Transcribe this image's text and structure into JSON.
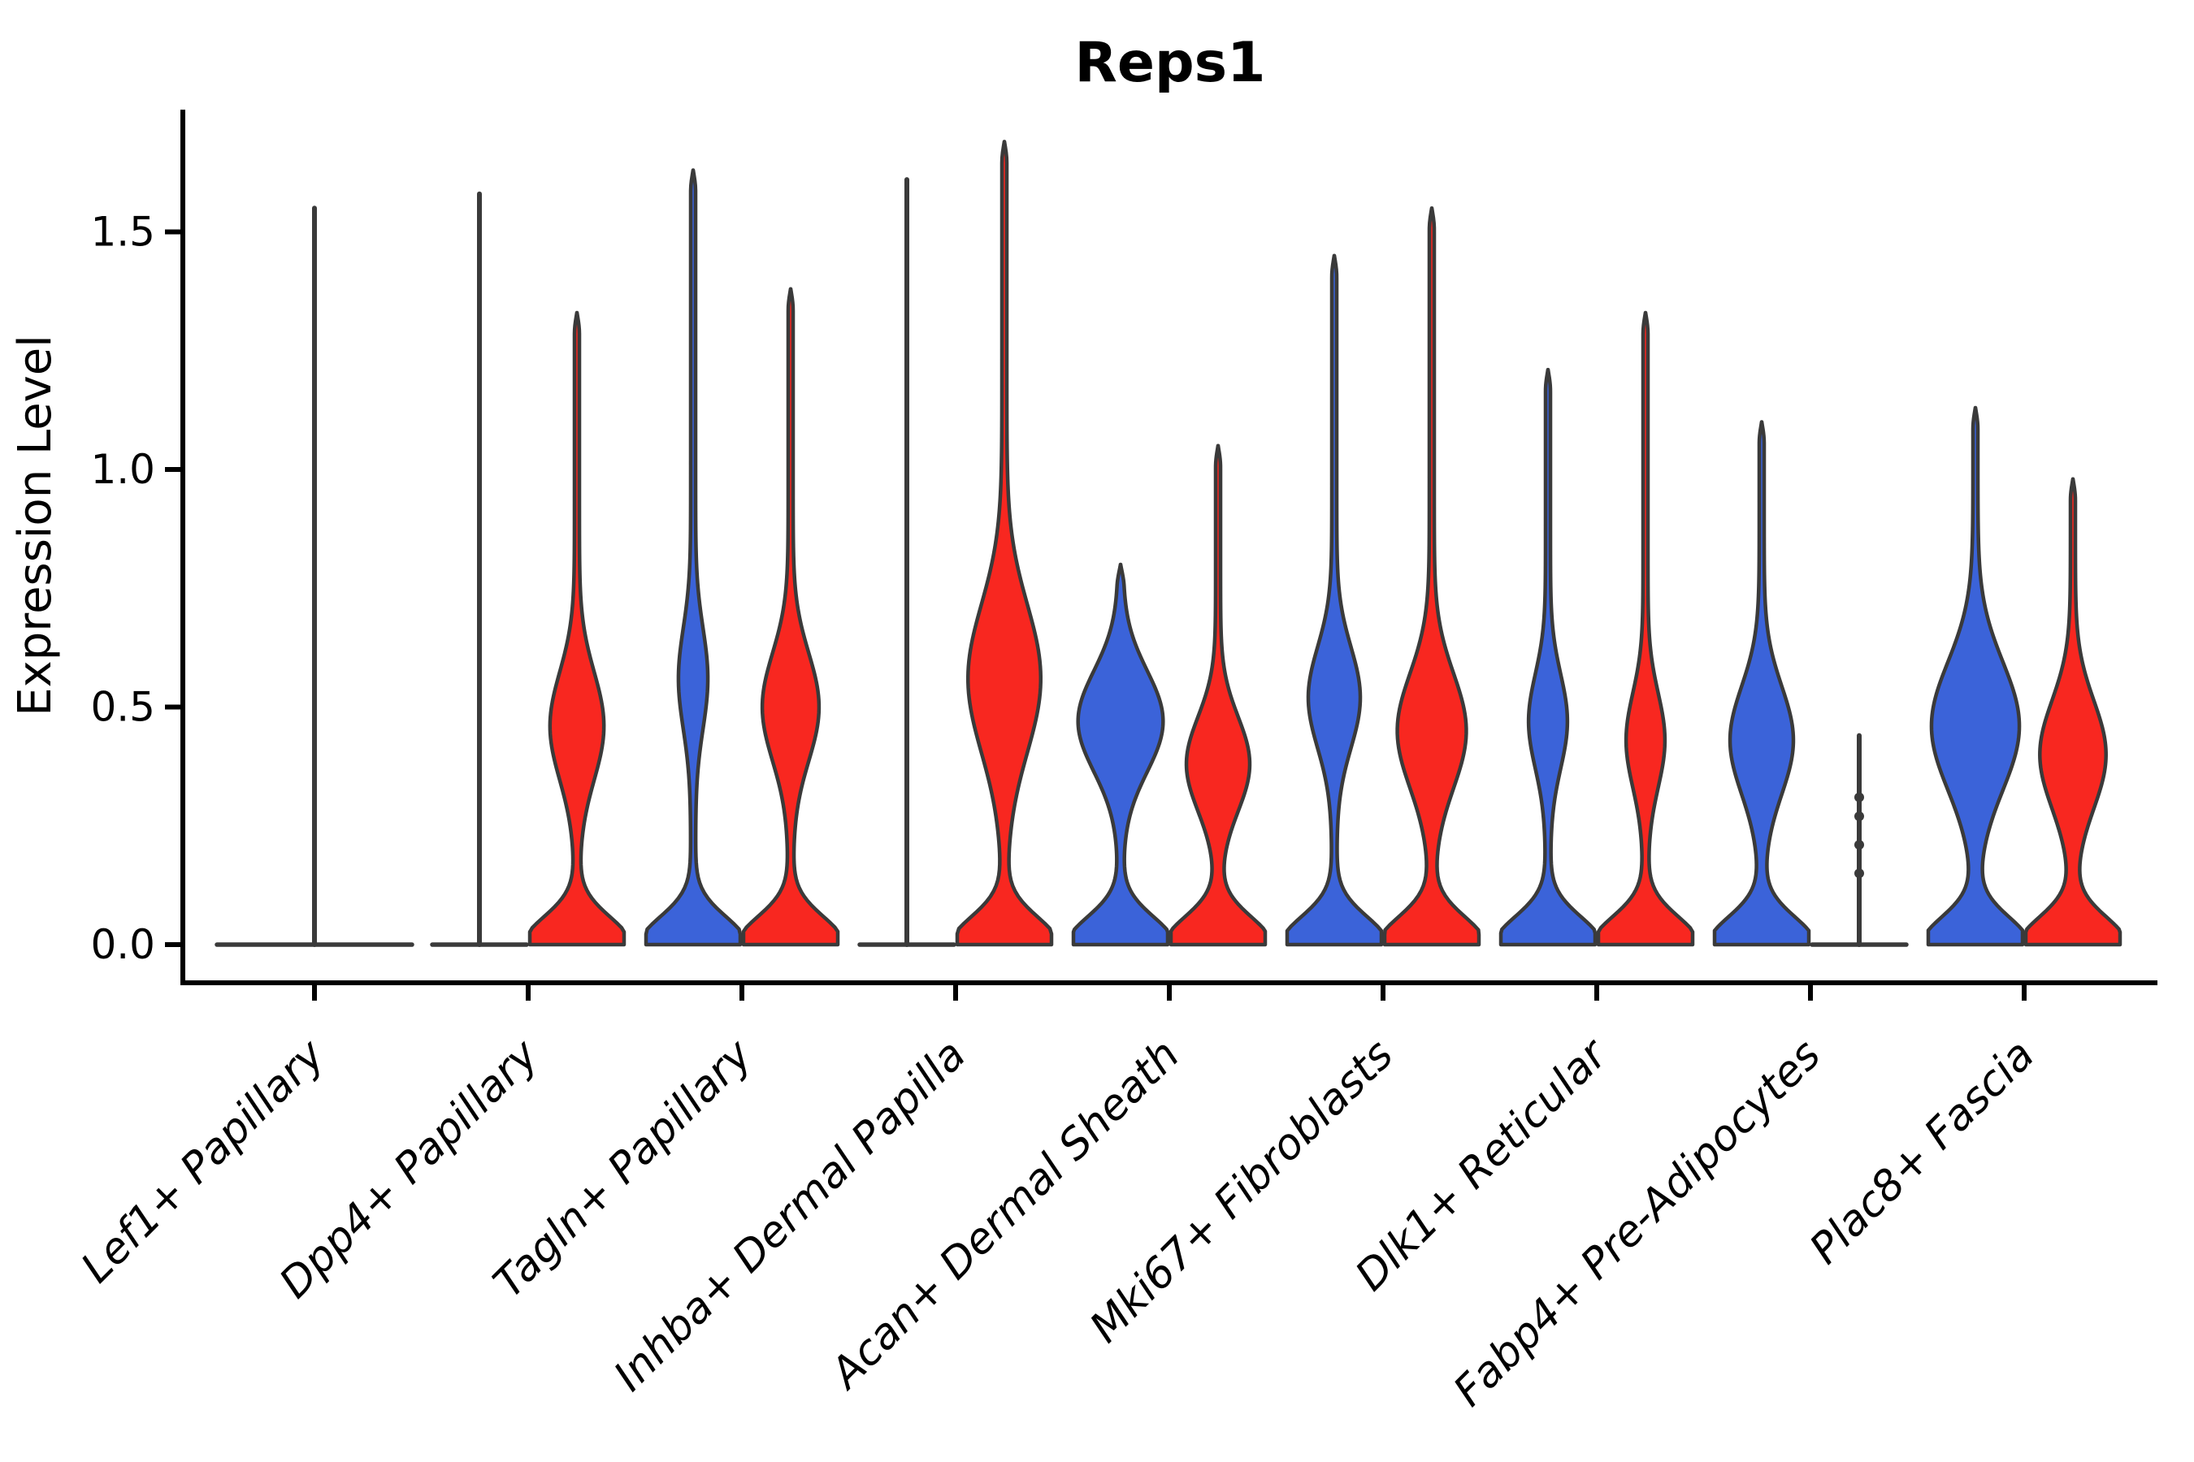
{
  "chart_data": {
    "type": "violin",
    "title": "Reps1",
    "ylabel": "Expression Level",
    "yticks": [
      0.0,
      0.5,
      1.0,
      1.5
    ],
    "y_axis_range": [
      0.0,
      1.75
    ],
    "x_tick_rotation_deg": 45,
    "grid": "off",
    "legend": "none",
    "categories": [
      "Lef1+ Papillary",
      "Dpp4+ Papillary",
      "Tagln+ Papillary",
      "Inhba+ Dermal Papilla",
      "Acan+ Dermal Sheath",
      "Mki67+ Fibroblasts",
      "Dlk1+ Reticular",
      "Fabp4+ Pre-Adipocytes",
      "Plac8+ Fascia"
    ],
    "colors": {
      "blue_fill": "#3B63D9",
      "red_fill": "#F82720",
      "outline": "#3A3A3A",
      "axis": "#000000"
    },
    "series": [
      {
        "name": "blue",
        "color": "#3B63D9",
        "violins": [
          {
            "shape": "collapsed",
            "max": 1.55,
            "offset": 0,
            "flat_halfwidth": 120,
            "knots": []
          },
          {
            "shape": "collapsed",
            "max": 1.58,
            "offset": -60,
            "flat_halfwidth": 58,
            "knots": []
          },
          {
            "shape": "violin",
            "max": 1.63,
            "mode": 0.56,
            "spread": 0.15,
            "amp": 0.26,
            "offset": -60
          },
          {
            "shape": "collapsed",
            "max": 1.61,
            "offset": -60,
            "flat_halfwidth": 58,
            "knots": []
          },
          {
            "shape": "violin",
            "max": 0.8,
            "mode": 0.47,
            "spread": 0.15,
            "amp": 0.85,
            "offset": -60
          },
          {
            "shape": "violin",
            "max": 1.45,
            "mode": 0.52,
            "spread": 0.15,
            "amp": 0.5,
            "offset": -60
          },
          {
            "shape": "violin",
            "max": 1.21,
            "mode": 0.47,
            "spread": 0.14,
            "amp": 0.36,
            "offset": -60
          },
          {
            "shape": "violin",
            "max": 1.1,
            "mode": 0.43,
            "spread": 0.16,
            "amp": 0.62,
            "offset": -60
          },
          {
            "shape": "violin",
            "max": 1.13,
            "mode": 0.46,
            "spread": 0.19,
            "amp": 0.88,
            "offset": -60
          }
        ]
      },
      {
        "name": "red",
        "color": "#F82720",
        "violins": [
          {
            "shape": "none"
          },
          {
            "shape": "violin",
            "max": 1.33,
            "mode": 0.46,
            "spread": 0.16,
            "amp": 0.52,
            "offset": 60
          },
          {
            "shape": "violin",
            "max": 1.38,
            "mode": 0.5,
            "spread": 0.16,
            "amp": 0.55,
            "offset": 60
          },
          {
            "shape": "violin",
            "max": 1.69,
            "mode": 0.56,
            "spread": 0.22,
            "amp": 0.72,
            "offset": 60
          },
          {
            "shape": "violin",
            "max": 1.05,
            "mode": 0.38,
            "spread": 0.14,
            "amp": 0.62,
            "offset": 60
          },
          {
            "shape": "violin",
            "max": 1.55,
            "mode": 0.45,
            "spread": 0.17,
            "amp": 0.68,
            "offset": 60
          },
          {
            "shape": "violin",
            "max": 1.33,
            "mode": 0.43,
            "spread": 0.14,
            "amp": 0.36,
            "offset": 60
          },
          {
            "shape": "collapsed",
            "max": 0.44,
            "offset": 60,
            "flat_halfwidth": 58,
            "knots": [
              0.31,
              0.27,
              0.21,
              0.15
            ]
          },
          {
            "shape": "violin",
            "max": 0.98,
            "mode": 0.4,
            "spread": 0.16,
            "amp": 0.65,
            "offset": 60
          }
        ]
      }
    ]
  }
}
